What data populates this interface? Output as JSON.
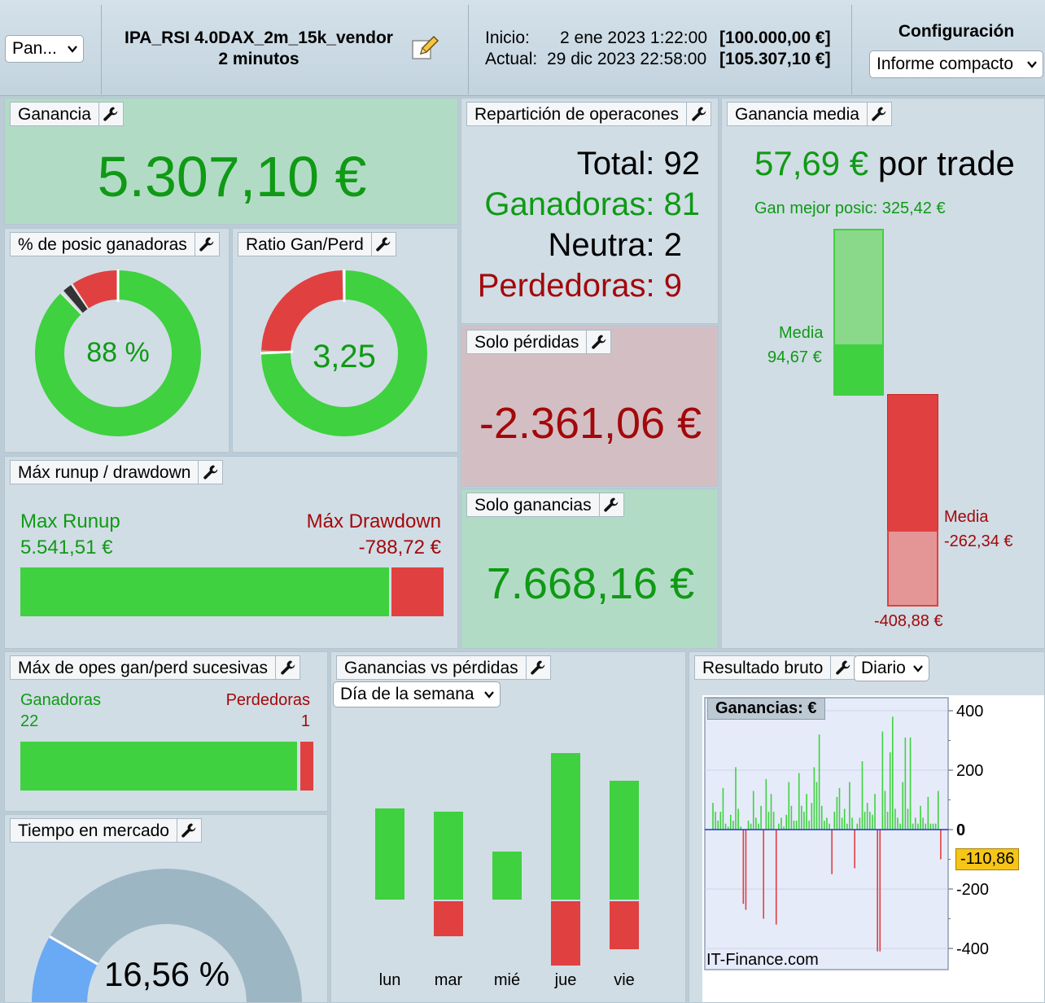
{
  "header": {
    "pan_select": "Pan...",
    "strategy_name": "IPA_RSI 4.0DAX_2m_15k_vendor",
    "timeframe": "2 minutos",
    "inicio_label": "Inicio:",
    "inicio_date": "2 ene 2023 1:22:00",
    "inicio_value": "[100.000,00 €]",
    "actual_label": "Actual:",
    "actual_date": "29 dic 2023 22:58:00",
    "actual_value": "[105.307,10 €]",
    "config_label": "Configuración",
    "config_select": "Informe compacto"
  },
  "ganancia": {
    "title": "Ganancia",
    "value": "5.307,10 €"
  },
  "pct_ganadoras": {
    "title": "% de posic ganadoras",
    "value": "88 %"
  },
  "ratio": {
    "title": "Ratio Gan/Perd",
    "value": "3,25"
  },
  "reparticion": {
    "title": "Repartición de operacones",
    "total": "Total: 92",
    "ganadoras": "Ganadoras: 81",
    "neutra": "Neutra: 2",
    "perdedoras": "Perdedoras: 9"
  },
  "solo_perdidas": {
    "title": "Solo pérdidas",
    "value": "-2.361,06 €"
  },
  "solo_ganancias": {
    "title": "Solo ganancias",
    "value": "7.668,16 €"
  },
  "ganancia_media": {
    "title": "Ganancia media",
    "value": "57,69 €",
    "suffix": "por trade",
    "best_label": "Gan mejor posic: 325,42 €",
    "media_win_label": "Media",
    "media_win_value": "94,67 €",
    "media_loss_label": "Media",
    "media_loss_value": "-262,34 €",
    "worst_value": "-408,88 €",
    "best_num": 325.42,
    "media_win_num": 94.67,
    "media_loss_num": -262.34,
    "worst_num": -408.88
  },
  "runup": {
    "title": "Máx runup / drawdown",
    "runup_label": "Max Runup",
    "runup_value": "5.541,51 €",
    "drawdown_label": "Máx Drawdown",
    "drawdown_value": "-788,72 €",
    "runup_num": 5541.51,
    "drawdown_num": 788.72
  },
  "sucesivas": {
    "title": "Máx de opes gan/perd sucesivas",
    "gan_label": "Ganadoras",
    "gan_value": "22",
    "perd_label": "Perdedoras",
    "perd_value": "1"
  },
  "tiempo": {
    "title": "Tiempo en mercado",
    "value": "16,56 %",
    "fraction": 0.1656
  },
  "gvp": {
    "title": "Ganancias vs pérdidas",
    "select": "Día de la semana",
    "days": [
      "lun",
      "mar",
      "mié",
      "jue",
      "vie"
    ],
    "gains": [
      0.62,
      0.6,
      0.33,
      1.0,
      0.81
    ],
    "losses": [
      0,
      0.24,
      0,
      0.44,
      0.33
    ]
  },
  "resultado": {
    "title": "Resultado bruto",
    "select": "Diario",
    "chart_label": "Ganancias: €",
    "watermark": "IT-Finance.com",
    "current_value": "-110,86",
    "y_ticks": [
      "400",
      "200",
      "0",
      "-200",
      "-400"
    ]
  },
  "chart_data": {
    "type": "bar",
    "title": "Ganancias: €",
    "ylim": [
      -480,
      420
    ],
    "current": -110.86,
    "values": [
      90,
      60,
      30,
      60,
      140,
      20,
      10,
      50,
      30,
      210,
      70,
      10,
      -250,
      -270,
      30,
      20,
      130,
      40,
      20,
      80,
      -300,
      170,
      60,
      120,
      60,
      -320,
      20,
      40,
      10,
      50,
      160,
      80,
      30,
      30,
      190,
      80,
      60,
      120,
      30,
      90,
      210,
      160,
      320,
      80,
      30,
      40,
      20,
      -150,
      60,
      110,
      140,
      40,
      70,
      20,
      160,
      40,
      -130,
      20,
      40,
      230,
      60,
      90,
      60,
      50,
      120,
      -410,
      -410,
      330,
      130,
      60,
      260,
      380,
      70,
      40,
      20,
      160,
      310,
      70,
      310,
      20,
      40,
      20,
      80,
      40,
      20,
      110,
      20,
      20,
      20,
      130,
      -100
    ]
  }
}
